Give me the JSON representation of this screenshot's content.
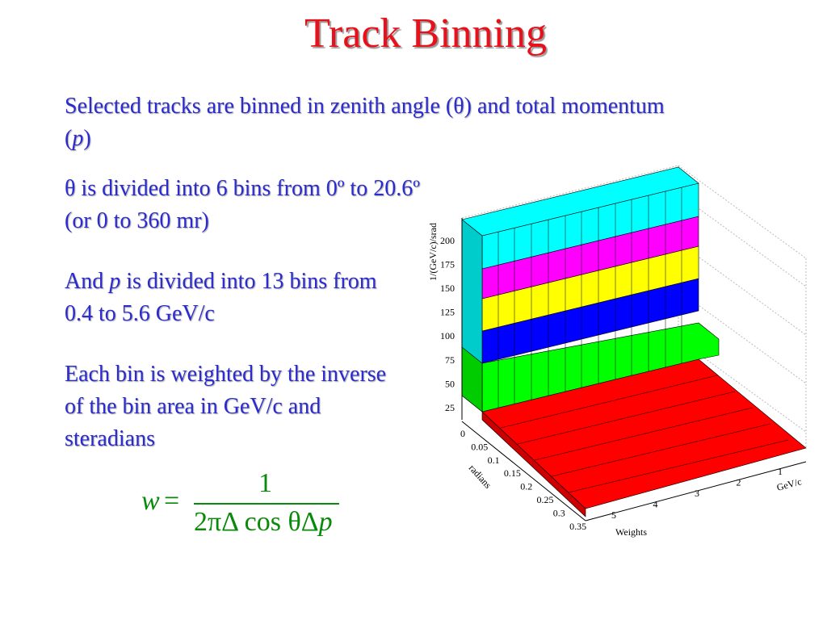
{
  "title": "Track Binning",
  "paragraphs": [
    [
      "Selected tracks are binned in zenith angle (θ) and total momentum (",
      "p",
      ")"
    ],
    [
      "θ is divided into 6 bins from 0º to 20.6º (or 0 to 360 mr)"
    ],
    [
      "And ",
      "p",
      " is divided into 13 bins from 0.4 to 5.6 GeV/c"
    ],
    [
      "Each bin is weighted by the inverse of the bin area in GeV/c and steradians"
    ]
  ],
  "formula": {
    "lhs": "w",
    "equals": "=",
    "numerator": "1",
    "denominator": "2πΔ cos θΔ",
    "denominator_var": "p"
  },
  "plot": {
    "z_axis_title": "1/(GeV/c)/srad",
    "z_ticks": [
      "25",
      "50",
      "75",
      "100",
      "125",
      "150",
      "175",
      "200"
    ],
    "y_axis_title": "radians",
    "y_ticks": [
      "0",
      "0.05",
      "0.1",
      "0.15",
      "0.2",
      "0.25",
      "0.3",
      "0.35"
    ],
    "x_axis_title": "GeV/c",
    "x_ticks": [
      "1",
      "2",
      "3",
      "4",
      "5"
    ],
    "bottom_title": "Weights"
  }
}
